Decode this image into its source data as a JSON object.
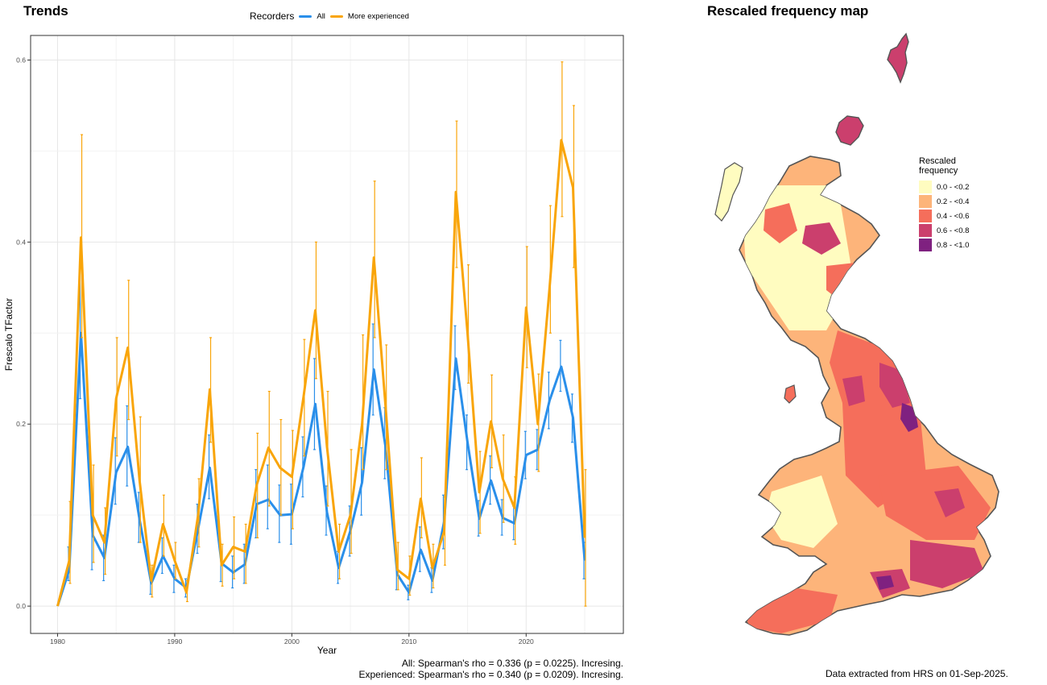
{
  "trends_title": "Trends",
  "map_title": "Rescaled frequency map",
  "legend": {
    "title": "Recorders",
    "items": [
      {
        "label": "All",
        "color": "#2a8fea"
      },
      {
        "label": "More experienced",
        "color": "#f9a50a"
      }
    ]
  },
  "stats": {
    "line1": "All: Spearman's rho = 0.336 (p = 0.0225). Incresing.",
    "line2": "Experienced: Spearman's rho = 0.340 (p = 0.0209). Incresing."
  },
  "footnote": "Data extracted from HRS on 01-Sep-2025.",
  "map_legend": {
    "title_line1": "Rescaled",
    "title_line2": "frequency",
    "items": [
      {
        "label": "0.0 - <0.2",
        "color": "#fffcc0"
      },
      {
        "label": "0.2 - <0.4",
        "color": "#fdb47a"
      },
      {
        "label": "0.4 - <0.6",
        "color": "#f56e5b"
      },
      {
        "label": "0.6 - <0.8",
        "color": "#cb3f6d"
      },
      {
        "label": "0.8 - <1.0",
        "color": "#7f2180"
      }
    ]
  },
  "chart_data": {
    "type": "line",
    "xlabel": "Year",
    "ylabel": "Frescalo TFactor",
    "xlim": [
      1977.7,
      2028.3
    ],
    "ylim": [
      -0.03,
      0.627
    ],
    "x_ticks": [
      1980,
      1990,
      2000,
      2010,
      2020
    ],
    "y_ticks": [
      0.0,
      0.2,
      0.4,
      0.6
    ],
    "y_tick_labels": [
      "0.0",
      "0.2",
      "0.4",
      "0.6"
    ],
    "grid": true,
    "x": [
      1980,
      1981,
      1982,
      1983,
      1984,
      1985,
      1986,
      1987,
      1988,
      1989,
      1990,
      1991,
      1992,
      1993,
      1994,
      1995,
      1996,
      1997,
      1998,
      1999,
      2000,
      2001,
      2002,
      2003,
      2004,
      2005,
      2006,
      2007,
      2008,
      2009,
      2010,
      2011,
      2012,
      2013,
      2014,
      2015,
      2016,
      2017,
      2018,
      2019,
      2020,
      2021,
      2022,
      2023,
      2024,
      2025
    ],
    "series": [
      {
        "name": "All",
        "color": "#2a8fea",
        "values": [
          0.0,
          0.04,
          0.3,
          0.078,
          0.053,
          0.147,
          0.175,
          0.095,
          0.025,
          0.055,
          0.03,
          0.02,
          0.085,
          0.152,
          0.047,
          0.037,
          0.046,
          0.112,
          0.117,
          0.1,
          0.101,
          0.153,
          0.222,
          0.103,
          0.042,
          0.083,
          0.136,
          0.26,
          0.175,
          0.035,
          0.015,
          0.062,
          0.028,
          0.093,
          0.272,
          0.18,
          0.096,
          0.138,
          0.097,
          0.091,
          0.166,
          0.172,
          0.226,
          0.263,
          0.207,
          0.05
        ],
        "err_low": [
          0.0,
          0.028,
          0.228,
          0.04,
          0.028,
          0.112,
          0.132,
          0.07,
          0.013,
          0.036,
          0.015,
          0.01,
          0.058,
          0.118,
          0.027,
          0.02,
          0.025,
          0.075,
          0.085,
          0.07,
          0.068,
          0.12,
          0.172,
          0.078,
          0.025,
          0.055,
          0.1,
          0.21,
          0.14,
          0.018,
          0.007,
          0.038,
          0.015,
          0.063,
          0.238,
          0.15,
          0.077,
          0.112,
          0.078,
          0.073,
          0.14,
          0.15,
          0.195,
          0.236,
          0.18,
          0.03
        ],
        "err_high": [
          0.0,
          0.065,
          0.374,
          0.115,
          0.078,
          0.185,
          0.22,
          0.125,
          0.038,
          0.075,
          0.045,
          0.03,
          0.112,
          0.188,
          0.068,
          0.055,
          0.068,
          0.15,
          0.155,
          0.133,
          0.134,
          0.186,
          0.272,
          0.132,
          0.06,
          0.11,
          0.174,
          0.31,
          0.218,
          0.052,
          0.023,
          0.087,
          0.042,
          0.122,
          0.308,
          0.21,
          0.116,
          0.165,
          0.117,
          0.11,
          0.192,
          0.194,
          0.257,
          0.292,
          0.233,
          0.07
        ]
      },
      {
        "name": "More experienced",
        "color": "#f9a50a",
        "values": [
          0.0,
          0.05,
          0.405,
          0.1,
          0.07,
          0.228,
          0.284,
          0.138,
          0.028,
          0.09,
          0.05,
          0.015,
          0.1,
          0.238,
          0.045,
          0.065,
          0.06,
          0.133,
          0.174,
          0.152,
          0.142,
          0.23,
          0.325,
          0.175,
          0.06,
          0.1,
          0.2,
          0.383,
          0.22,
          0.04,
          0.03,
          0.118,
          0.042,
          0.082,
          0.455,
          0.3,
          0.125,
          0.203,
          0.14,
          0.108,
          0.328,
          0.2,
          0.35,
          0.512,
          0.46,
          0.075
        ],
        "err_low": [
          0.0,
          0.025,
          0.295,
          0.048,
          0.035,
          0.165,
          0.205,
          0.07,
          0.01,
          0.055,
          0.03,
          0.005,
          0.065,
          0.18,
          0.022,
          0.03,
          0.025,
          0.075,
          0.11,
          0.1,
          0.085,
          0.165,
          0.25,
          0.11,
          0.03,
          0.058,
          0.15,
          0.295,
          0.15,
          0.018,
          0.012,
          0.075,
          0.02,
          0.045,
          0.372,
          0.245,
          0.08,
          0.152,
          0.092,
          0.068,
          0.262,
          0.148,
          0.3,
          0.428,
          0.372,
          0.0
        ],
        "err_high": [
          0.0,
          0.115,
          0.518,
          0.155,
          0.108,
          0.295,
          0.358,
          0.208,
          0.045,
          0.122,
          0.07,
          0.028,
          0.14,
          0.295,
          0.068,
          0.098,
          0.09,
          0.19,
          0.236,
          0.205,
          0.193,
          0.293,
          0.4,
          0.236,
          0.09,
          0.172,
          0.298,
          0.467,
          0.287,
          0.07,
          0.055,
          0.163,
          0.068,
          0.12,
          0.533,
          0.375,
          0.17,
          0.254,
          0.188,
          0.142,
          0.395,
          0.255,
          0.44,
          0.598,
          0.55,
          0.15
        ]
      }
    ]
  }
}
